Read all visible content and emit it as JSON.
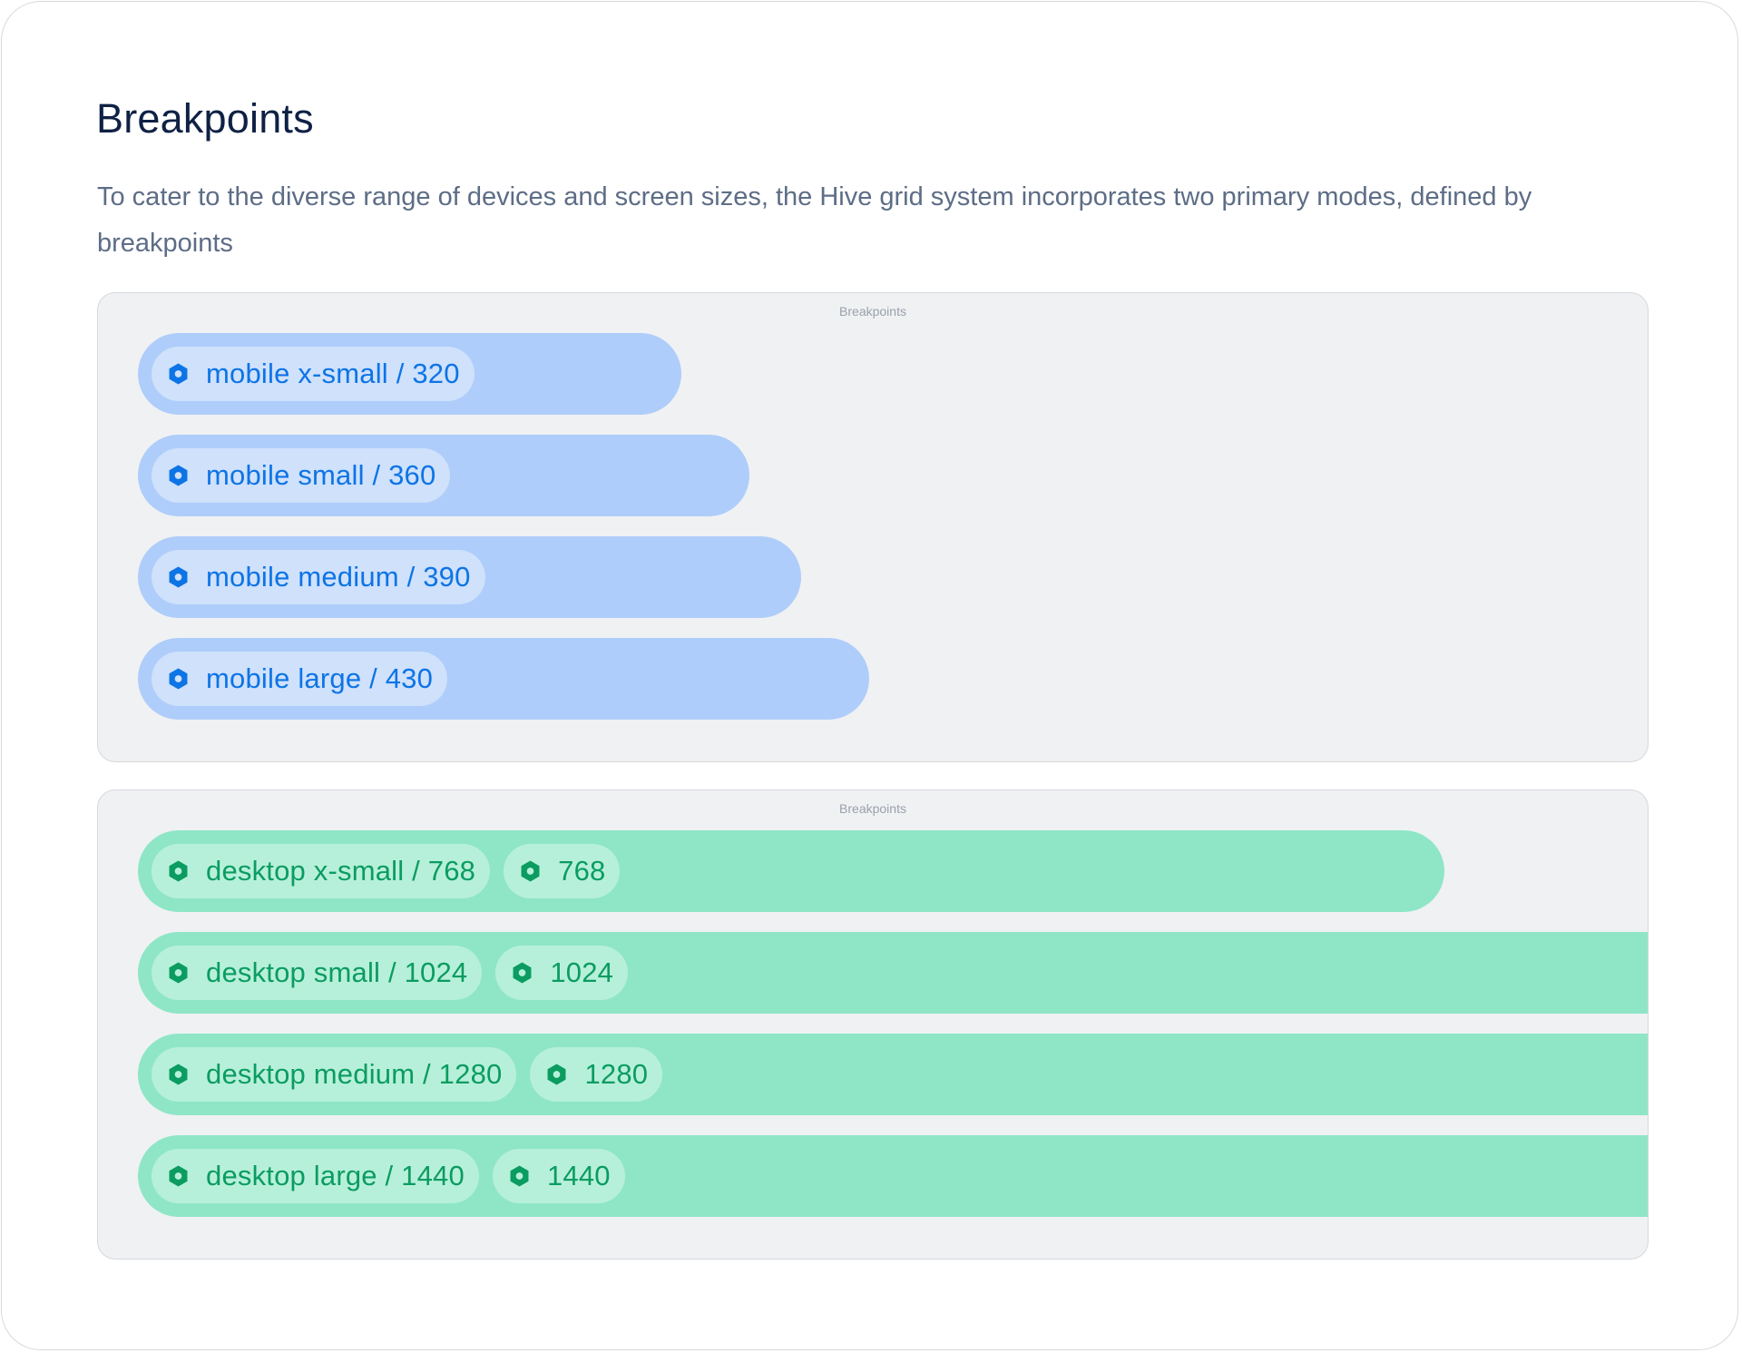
{
  "page": {
    "title": "Breakpoints",
    "description": "To cater to the diverse range of devices and screen sizes, the Hive grid system incorporates two primary modes, defined by breakpoints"
  },
  "mobile_frame": {
    "label": "Breakpoints",
    "items": [
      {
        "label": "mobile x-small / 320",
        "icon": "hexagon-icon"
      },
      {
        "label": "mobile small / 360",
        "icon": "hexagon-icon"
      },
      {
        "label": "mobile medium / 390",
        "icon": "hexagon-icon"
      },
      {
        "label": "mobile large / 430",
        "icon": "hexagon-icon"
      }
    ]
  },
  "desktop_frame": {
    "label": "Breakpoints",
    "items": [
      {
        "label": "desktop x-small / 768",
        "value": "768",
        "icon": "hexagon-icon"
      },
      {
        "label": "desktop small / 1024",
        "value": "1024",
        "icon": "hexagon-icon"
      },
      {
        "label": "desktop medium / 1280",
        "value": "1280",
        "icon": "hexagon-icon"
      },
      {
        "label": "desktop large / 1440",
        "value": "1440",
        "icon": "hexagon-icon"
      }
    ]
  },
  "colors": {
    "title": "#0f2144",
    "description": "#5d6d86",
    "frame_bg": "#f0f1f3",
    "mobile_bar": "#aecdfa",
    "mobile_chip": "#cfe1fb",
    "mobile_accent": "#0d74e6",
    "desktop_bar": "#8ee6c6",
    "desktop_chip": "#b7f0da",
    "desktop_accent": "#0b9c61"
  }
}
